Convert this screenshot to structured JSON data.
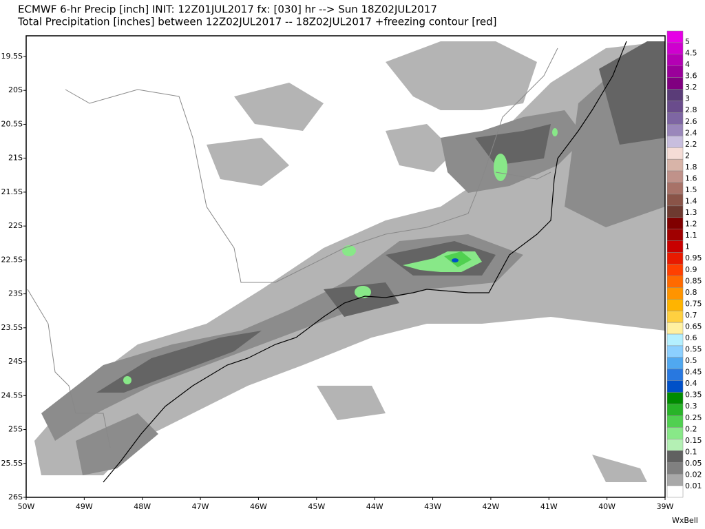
{
  "header": {
    "line1": "ECMWF 6-hr Precip [inch] INIT: 12Z01JUL2017 fx: [030] hr --> Sun 18Z02JUL2017",
    "line2": "Total Precipitation [inches] between 12Z02JUL2017 -- 18Z02JUL2017 +freezing contour [red]"
  },
  "map": {
    "x_labels": [
      "50W",
      "49W",
      "48W",
      "47W",
      "46W",
      "45W",
      "44W",
      "43W",
      "42W",
      "41W",
      "40W",
      "39W"
    ],
    "y_labels": [
      "19.5S",
      "20S",
      "20.5S",
      "21S",
      "21.5S",
      "22S",
      "22.5S",
      "23S",
      "23.5S",
      "24S",
      "24.5S",
      "25S",
      "25.5S",
      "26S"
    ]
  },
  "colorbar": {
    "levels": [
      {
        "label": "5",
        "color": "#e600e6"
      },
      {
        "label": "4.5",
        "color": "#cf00cf"
      },
      {
        "label": "4",
        "color": "#b400b4"
      },
      {
        "label": "3.6",
        "color": "#9a009a"
      },
      {
        "label": "3.2",
        "color": "#800080"
      },
      {
        "label": "3",
        "color": "#5a3c78"
      },
      {
        "label": "2.8",
        "color": "#6a4c8c"
      },
      {
        "label": "2.6",
        "color": "#7e66a3"
      },
      {
        "label": "2.4",
        "color": "#9a87bb"
      },
      {
        "label": "2.2",
        "color": "#c8bede"
      },
      {
        "label": "2",
        "color": "#f5dcd6"
      },
      {
        "label": "1.8",
        "color": "#d8b4a8"
      },
      {
        "label": "1.6",
        "color": "#c0928a"
      },
      {
        "label": "1.5",
        "color": "#a87268"
      },
      {
        "label": "1.4",
        "color": "#8a5448"
      },
      {
        "label": "1.3",
        "color": "#6e3a30"
      },
      {
        "label": "1.2",
        "color": "#800000"
      },
      {
        "label": "1.1",
        "color": "#a00000"
      },
      {
        "label": "1",
        "color": "#c80000"
      },
      {
        "label": "0.95",
        "color": "#e81a00"
      },
      {
        "label": "0.9",
        "color": "#ff4000"
      },
      {
        "label": "0.85",
        "color": "#ff6a00"
      },
      {
        "label": "0.8",
        "color": "#ff9400"
      },
      {
        "label": "0.75",
        "color": "#ffb400"
      },
      {
        "label": "0.7",
        "color": "#ffd040"
      },
      {
        "label": "0.65",
        "color": "#fff0a0"
      },
      {
        "label": "0.6",
        "color": "#b4f0ff"
      },
      {
        "label": "0.55",
        "color": "#8cd0ff"
      },
      {
        "label": "0.5",
        "color": "#50a8f0"
      },
      {
        "label": "0.45",
        "color": "#2878e0"
      },
      {
        "label": "0.4",
        "color": "#0050c8"
      },
      {
        "label": "0.35",
        "color": "#008c00"
      },
      {
        "label": "0.3",
        "color": "#28b428"
      },
      {
        "label": "0.25",
        "color": "#50d050"
      },
      {
        "label": "0.2",
        "color": "#88e888"
      },
      {
        "label": "0.15",
        "color": "#b4f0b4"
      },
      {
        "label": "0.1",
        "color": "#606060"
      },
      {
        "label": "0.05",
        "color": "#808080"
      },
      {
        "label": "0.02",
        "color": "#a8a8a8"
      },
      {
        "label": "0.01",
        "color": "#ffffff"
      }
    ]
  },
  "credit": "WxBell"
}
